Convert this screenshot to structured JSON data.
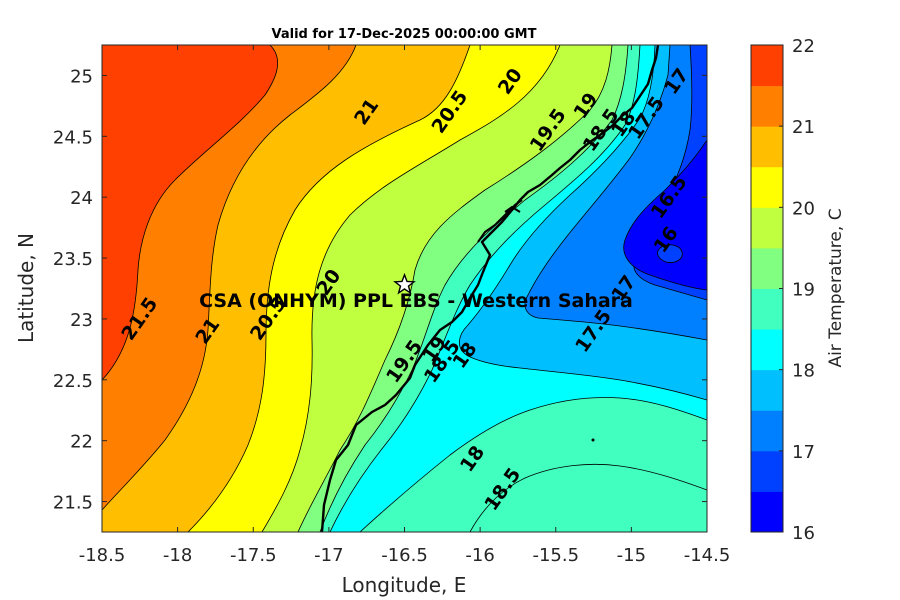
{
  "chart_data": {
    "type": "heatmap",
    "subtype": "filled-contour-map",
    "title": "Valid for 17-Dec-2025 00:00:00 GMT",
    "xlabel": "Longitude, E",
    "ylabel": "Latitude, N",
    "xlim": [
      -18.5,
      -14.5
    ],
    "ylim": [
      21.25,
      25.25
    ],
    "xticks": [
      -18.5,
      -18,
      -17.5,
      -17,
      -16.5,
      -16,
      -15.5,
      -15,
      -14.5
    ],
    "xtick_labels": [
      "-18.5",
      "-18",
      "-17.5",
      "-17",
      "-16.5",
      "-16",
      "-15.5",
      "-15",
      "-14.5"
    ],
    "yticks": [
      21.5,
      22,
      22.5,
      23,
      23.5,
      24,
      24.5,
      25
    ],
    "ytick_labels": [
      "21.5",
      "22",
      "22.5",
      "23",
      "23.5",
      "24",
      "24.5",
      "25"
    ],
    "colorbar": {
      "label": "Air Temperature, C",
      "range": [
        16,
        22
      ],
      "ticks": [
        16,
        17,
        18,
        19,
        20,
        21,
        22
      ],
      "tick_labels": [
        "16",
        "17",
        "18",
        "19",
        "20",
        "21",
        "22"
      ],
      "levels": [
        {
          "from": 16.0,
          "to": 16.5,
          "color": "#0000ff"
        },
        {
          "from": 16.5,
          "to": 17.0,
          "color": "#0040ff"
        },
        {
          "from": 17.0,
          "to": 17.5,
          "color": "#0080ff"
        },
        {
          "from": 17.5,
          "to": 18.0,
          "color": "#00bfff"
        },
        {
          "from": 18.0,
          "to": 18.5,
          "color": "#00ffff"
        },
        {
          "from": 18.5,
          "to": 19.0,
          "color": "#40ffbf"
        },
        {
          "from": 19.0,
          "to": 19.5,
          "color": "#80ff80"
        },
        {
          "from": 19.5,
          "to": 20.0,
          "color": "#bfff40"
        },
        {
          "from": 20.0,
          "to": 20.5,
          "color": "#ffff00"
        },
        {
          "from": 20.5,
          "to": 21.0,
          "color": "#ffbf00"
        },
        {
          "from": 21.0,
          "to": 21.5,
          "color": "#ff8000"
        },
        {
          "from": 21.5,
          "to": 22.0,
          "color": "#ff4000"
        }
      ]
    },
    "contour_labels": [
      {
        "text": "21",
        "lon": -16.75,
        "lat": 24.7
      },
      {
        "text": "20.5",
        "lon": -16.2,
        "lat": 24.7
      },
      {
        "text": "20",
        "lon": -15.8,
        "lat": 24.95
      },
      {
        "text": "19.5",
        "lon": -15.55,
        "lat": 24.55
      },
      {
        "text": "19",
        "lon": -15.3,
        "lat": 24.75
      },
      {
        "text": "18.5",
        "lon": -15.2,
        "lat": 24.55
      },
      {
        "text": "18",
        "lon": -15.05,
        "lat": 24.6
      },
      {
        "text": "17.5",
        "lon": -14.9,
        "lat": 24.65
      },
      {
        "text": "17",
        "lon": -14.7,
        "lat": 24.95
      },
      {
        "text": "16.5",
        "lon": -14.75,
        "lat": 24.0
      },
      {
        "text": "16",
        "lon": -14.77,
        "lat": 23.65
      },
      {
        "text": "17",
        "lon": -15.05,
        "lat": 23.25
      },
      {
        "text": "17.5",
        "lon": -15.25,
        "lat": 22.9
      },
      {
        "text": "21.5",
        "lon": -18.25,
        "lat": 23.0
      },
      {
        "text": "21",
        "lon": -17.8,
        "lat": 22.9
      },
      {
        "text": "20.5",
        "lon": -17.4,
        "lat": 23.0
      },
      {
        "text": "20",
        "lon": -17.0,
        "lat": 23.3
      },
      {
        "text": "19.5",
        "lon": -16.5,
        "lat": 22.65
      },
      {
        "text": "19",
        "lon": -16.3,
        "lat": 22.75
      },
      {
        "text": "18.5",
        "lon": -16.25,
        "lat": 22.65
      },
      {
        "text": "18",
        "lon": -16.1,
        "lat": 22.7
      },
      {
        "text": "18",
        "lon": -16.05,
        "lat": 21.85
      },
      {
        "text": "18.5",
        "lon": -15.85,
        "lat": 21.6
      }
    ],
    "site": {
      "label": "CSA (ONHYM) PPL EBS - Western Sahara",
      "lon": -16.5,
      "lat": 23.28,
      "marker": "star"
    }
  }
}
